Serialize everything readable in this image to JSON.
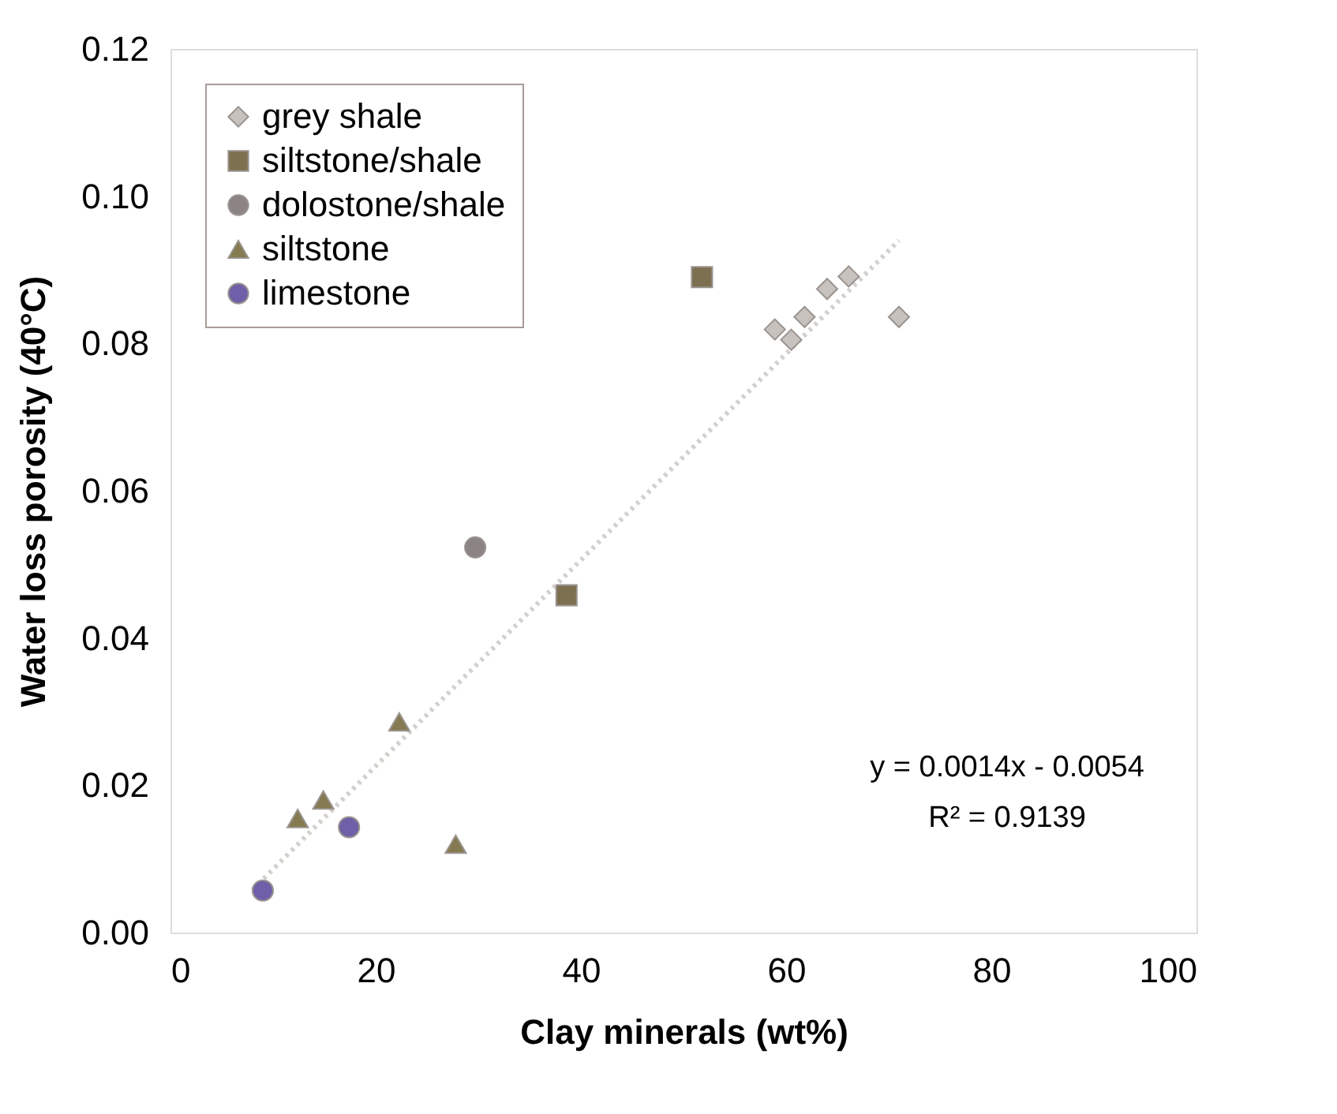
{
  "chart_data": {
    "type": "scatter",
    "xlabel": "Clay minerals (wt%)",
    "ylabel": "Water loss porosity (40°C)",
    "xlim": [
      0,
      100
    ],
    "xticks": [
      0,
      20,
      40,
      60,
      80,
      100
    ],
    "ylim": [
      0,
      0.12
    ],
    "yticks": [
      {
        "value": 0,
        "label": "0.00"
      },
      {
        "value": 0.02,
        "label": "0.02"
      },
      {
        "value": 0.04,
        "label": "0.04"
      },
      {
        "value": 0.06,
        "label": "0.06"
      },
      {
        "value": 0.08,
        "label": "0.08"
      },
      {
        "value": 0.1,
        "label": "0.10"
      },
      {
        "value": 0.12,
        "label": "0.12"
      }
    ],
    "grid": false,
    "legend": "top left",
    "annotations": [
      "y = 0.0014x - 0.0054",
      "R² = 0.9139"
    ],
    "series": [
      {
        "type": "line",
        "color": "#d4d0cc",
        "marker": "none",
        "line_style": "dotted",
        "x": [
          8,
          71
        ],
        "values": [
          0.0058,
          0.094
        ]
      },
      {
        "name": "grey shale",
        "color": "#c8c2be",
        "marker": "diamond",
        "x": [
          58.9,
          60.5,
          61.8,
          64.0,
          66.1,
          71.0
        ],
        "values": [
          0.0819,
          0.0805,
          0.0836,
          0.0874,
          0.0891,
          0.0836
        ]
      },
      {
        "name": "siltstone/shale",
        "color": "#7d7050",
        "marker": "square",
        "x": [
          51.8,
          38.6
        ],
        "values": [
          0.089,
          0.0458
        ]
      },
      {
        "name": "dolostone/shale",
        "color": "#8c8484",
        "marker": "circle",
        "x": [
          29.7
        ],
        "values": [
          0.0523
        ]
      },
      {
        "name": "siltstone",
        "color": "#857a50",
        "marker": "triangle",
        "x": [
          22.3,
          12.4,
          14.9,
          27.8
        ],
        "values": [
          0.0286,
          0.0155,
          0.018,
          0.012
        ]
      },
      {
        "name": "limestone",
        "color": "#6f5fa8",
        "marker": "circle",
        "x": [
          17.4,
          9.0
        ],
        "values": [
          0.0143,
          0.0057
        ]
      }
    ]
  }
}
